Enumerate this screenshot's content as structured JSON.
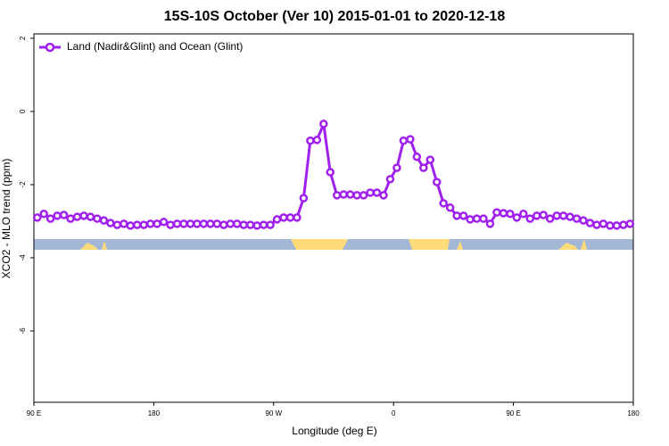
{
  "chart_data": {
    "type": "line",
    "title": "15S-10S October (Ver 10)   2015-01-01 to 2020-12-18",
    "x_label": "Longitude (deg E)",
    "y_label": "XCO2 - MLO trend (ppm)",
    "xlim": [
      -270,
      180
    ],
    "xticks": [
      {
        "value": -270,
        "label": "90 E"
      },
      {
        "value": -180,
        "label": "180"
      },
      {
        "value": -90,
        "label": "90 W"
      },
      0,
      {
        "value": 90,
        "label": "90 E"
      },
      180
    ],
    "ylim": [
      -7.95,
      2.12
    ],
    "yticks": [
      2,
      0,
      -2,
      -4,
      -6
    ],
    "legend": "top-left",
    "x": [
      -267.5,
      -262.5,
      -257.5,
      -252.5,
      -247.5,
      -242.5,
      -237.5,
      -232.5,
      -227.5,
      -222.5,
      -217.5,
      -212.5,
      -207.5,
      -202.5,
      -197.5,
      -192.5,
      -187.5,
      -182.5,
      -177.5,
      -172.5,
      -167.5,
      -162.5,
      -157.5,
      -152.5,
      -147.5,
      -142.5,
      -137.5,
      -132.5,
      -127.5,
      -122.5,
      -117.5,
      -112.5,
      -107.5,
      -102.5,
      -97.5,
      -92.5,
      -87.5,
      -82.5,
      -77.5,
      -72.5,
      -67.5,
      -62.5,
      -57.5,
      -52.5,
      -47.5,
      -42.5,
      -37.5,
      -32.5,
      -27.5,
      -22.5,
      -17.5,
      -12.5,
      -7.5,
      -2.5,
      2.5,
      7.5,
      12.5,
      17.5,
      22.5,
      27.5,
      32.5,
      37.5,
      42.5,
      47.5,
      52.5,
      57.5,
      62.5,
      67.5,
      72.5,
      77.5,
      82.5,
      87.5,
      92.5,
      97.5,
      102.5,
      107.5,
      112.5,
      117.5,
      122.5,
      127.5,
      132.5,
      137.5,
      142.5,
      147.5,
      152.5,
      157.5,
      162.5,
      167.5,
      172.5,
      177.5
    ],
    "series": [
      {
        "name": "Land (Nadir&Glint) and Ocean (Glint)",
        "color": "#a020f0",
        "values": [
          -2.9,
          -2.8,
          -2.93,
          -2.85,
          -2.83,
          -2.93,
          -2.88,
          -2.85,
          -2.88,
          -2.93,
          -2.98,
          -3.05,
          -3.1,
          -3.07,
          -3.12,
          -3.1,
          -3.1,
          -3.07,
          -3.07,
          -3.02,
          -3.1,
          -3.07,
          -3.07,
          -3.07,
          -3.07,
          -3.07,
          -3.07,
          -3.07,
          -3.1,
          -3.07,
          -3.07,
          -3.1,
          -3.1,
          -3.12,
          -3.1,
          -3.1,
          -2.95,
          -2.9,
          -2.9,
          -2.9,
          -2.37,
          -0.8,
          -0.78,
          -0.34,
          -1.66,
          -2.29,
          -2.27,
          -2.27,
          -2.29,
          -2.29,
          -2.22,
          -2.22,
          -2.29,
          -1.85,
          -1.54,
          -0.8,
          -0.76,
          -1.24,
          -1.54,
          -1.32,
          -1.93,
          -2.51,
          -2.63,
          -2.85,
          -2.85,
          -2.95,
          -2.93,
          -2.93,
          -3.07,
          -2.76,
          -2.78,
          -2.8,
          -2.9,
          -2.8,
          -2.93,
          -2.85,
          -2.83,
          -2.93,
          -2.85,
          -2.85,
          -2.88,
          -2.93,
          -2.98,
          -3.05,
          -3.1,
          -3.07,
          -3.12,
          -3.12,
          -3.1,
          -3.07
        ]
      }
    ]
  }
}
